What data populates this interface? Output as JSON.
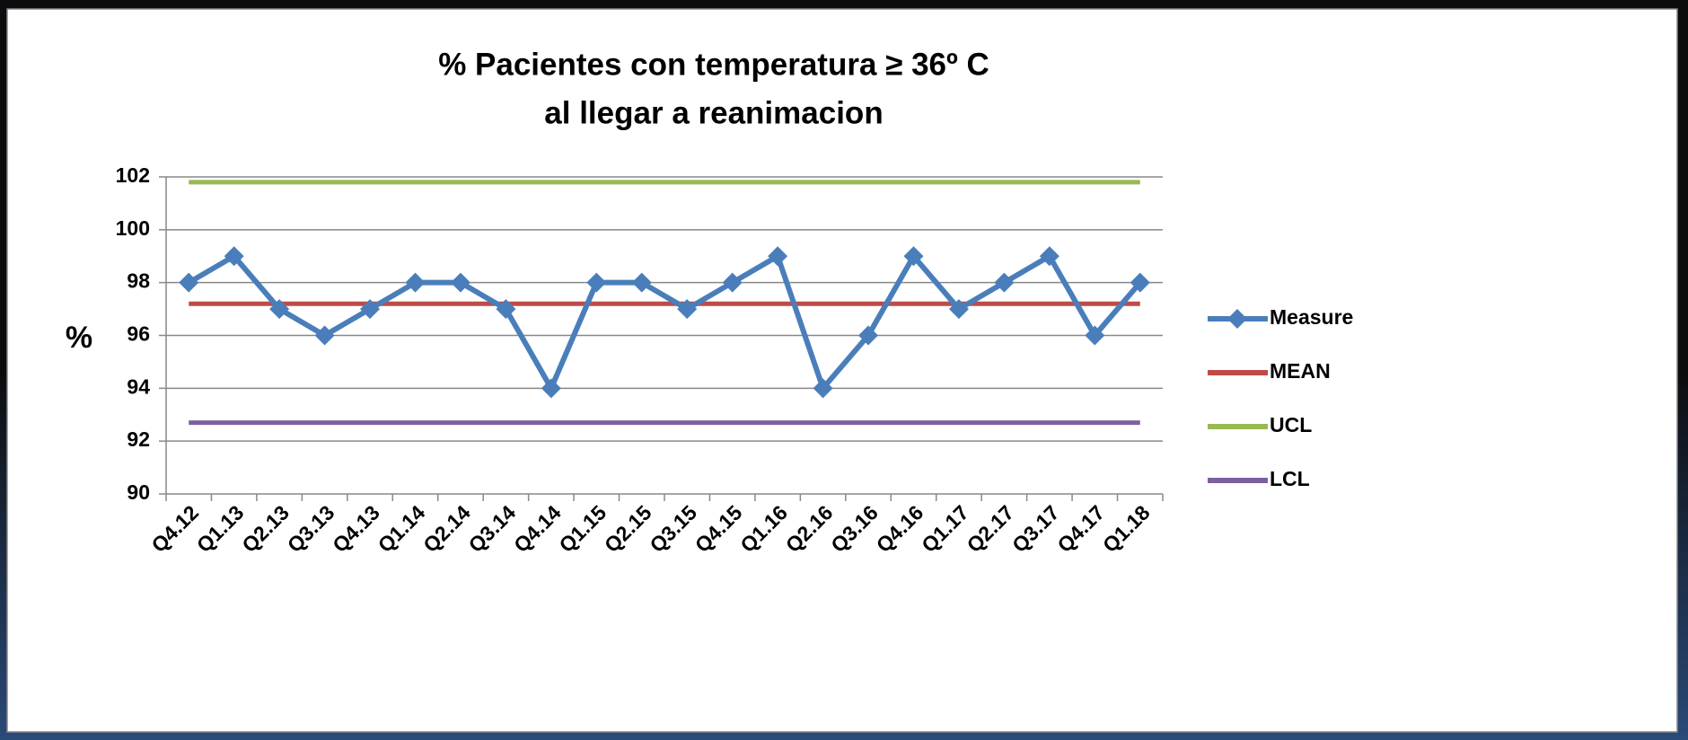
{
  "chart_data": {
    "type": "line",
    "title": [
      "% Pacientes con temperatura ≥ 36º C",
      "al llegar a reanimacion"
    ],
    "y_label": "%",
    "categories": [
      "Q4.12",
      "Q1.13",
      "Q2.13",
      "Q3.13",
      "Q4.13",
      "Q1.14",
      "Q2.14",
      "Q3.14",
      "Q4.14",
      "Q1.15",
      "Q2.15",
      "Q3.15",
      "Q4.15",
      "Q1.16",
      "Q2.16",
      "Q3.16",
      "Q4.16",
      "Q1.17",
      "Q2.17",
      "Q3.17",
      "Q4.17",
      "Q1.18"
    ],
    "series": [
      {
        "name": "Measure",
        "color": "#4a7ebb",
        "marker": "diamond",
        "values": [
          98,
          99,
          97,
          96,
          97,
          98,
          98,
          97,
          94,
          98,
          98,
          97,
          98,
          99,
          94,
          96,
          99,
          97,
          98,
          99,
          96,
          98
        ]
      },
      {
        "name": "MEAN",
        "color": "#be4b48",
        "values": [
          97.2,
          97.2,
          97.2,
          97.2,
          97.2,
          97.2,
          97.2,
          97.2,
          97.2,
          97.2,
          97.2,
          97.2,
          97.2,
          97.2,
          97.2,
          97.2,
          97.2,
          97.2,
          97.2,
          97.2,
          97.2,
          97.2
        ]
      },
      {
        "name": "UCL",
        "color": "#98b954",
        "values": [
          101.8,
          101.8,
          101.8,
          101.8,
          101.8,
          101.8,
          101.8,
          101.8,
          101.8,
          101.8,
          101.8,
          101.8,
          101.8,
          101.8,
          101.8,
          101.8,
          101.8,
          101.8,
          101.8,
          101.8,
          101.8,
          101.8
        ]
      },
      {
        "name": "LCL",
        "color": "#7d60a0",
        "values": [
          92.7,
          92.7,
          92.7,
          92.7,
          92.7,
          92.7,
          92.7,
          92.7,
          92.7,
          92.7,
          92.7,
          92.7,
          92.7,
          92.7,
          92.7,
          92.7,
          92.7,
          92.7,
          92.7,
          92.7,
          92.7,
          92.7
        ]
      }
    ],
    "ylim": [
      90,
      102
    ],
    "yticks": [
      90,
      92,
      94,
      96,
      98,
      100,
      102
    ],
    "grid": true,
    "legend": "right"
  }
}
